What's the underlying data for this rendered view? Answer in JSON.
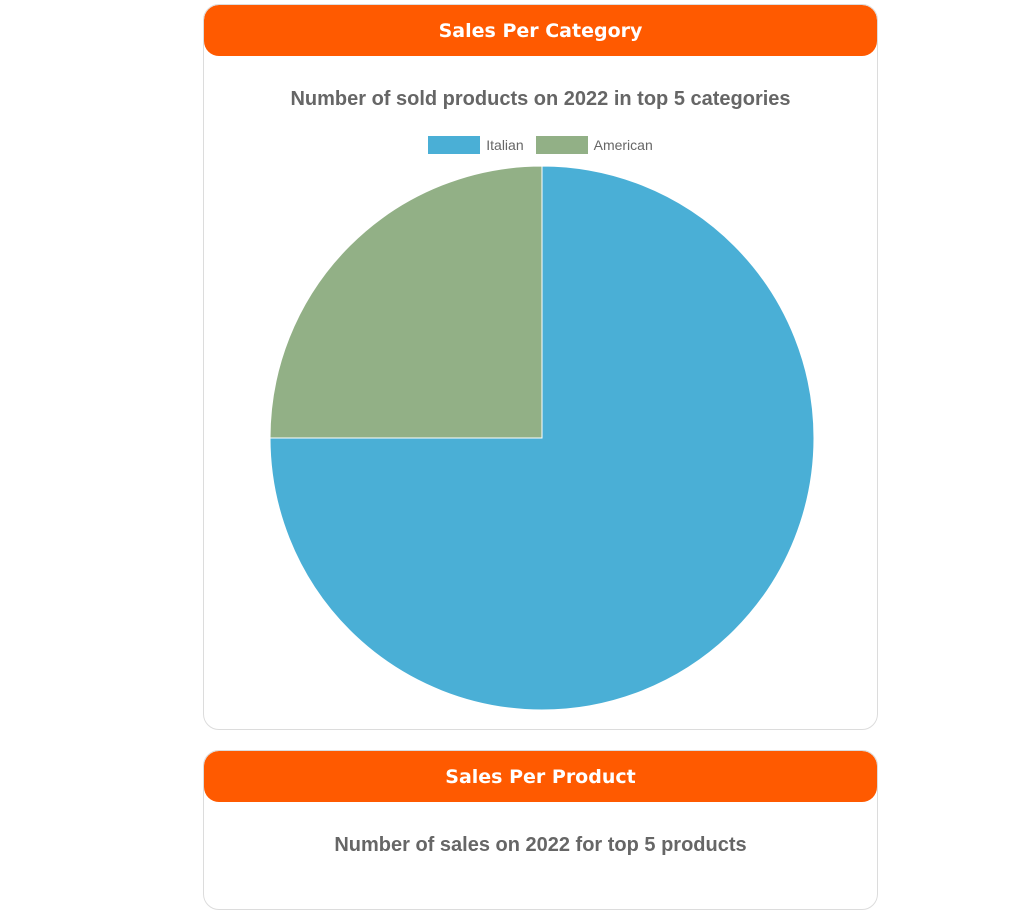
{
  "cards": [
    {
      "header": "Sales Per Category",
      "chart_title": "Number of sold products on 2022 in top 5 categories"
    },
    {
      "header": "Sales Per Product",
      "chart_title": "Number of sales on 2022 for top 5 products"
    }
  ],
  "chart_data": {
    "type": "pie",
    "title": "Number of sold products on 2022 in top 5 categories",
    "legend_position": "top",
    "categories": [
      "Italian",
      "American"
    ],
    "values": [
      3,
      1
    ],
    "colors": [
      "#4aafd6",
      "#92b086"
    ]
  }
}
